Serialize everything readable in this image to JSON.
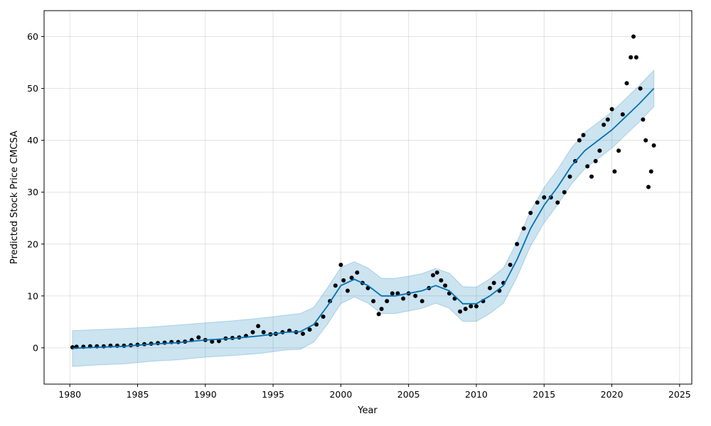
{
  "chart_data": {
    "type": "line",
    "title": "",
    "xlabel": "Year",
    "ylabel": "Predicted Stock Price CMCSA",
    "xlim": [
      1978.1,
      2025.9
    ],
    "ylim": [
      -7,
      65
    ],
    "x_ticks": [
      1980,
      1985,
      1990,
      1995,
      2000,
      2005,
      2010,
      2015,
      2020,
      2025
    ],
    "x_tick_labels": [
      "1980",
      "1985",
      "1990",
      "1995",
      "2000",
      "2005",
      "2010",
      "2015",
      "2020",
      "2025"
    ],
    "y_ticks": [
      0,
      10,
      20,
      30,
      40,
      50,
      60
    ],
    "y_tick_labels": [
      "0",
      "10",
      "20",
      "30",
      "40",
      "50",
      "60"
    ],
    "grid": true,
    "legend": "none",
    "colors": {
      "forecast": "#0072B2",
      "interval": "#0072B2",
      "actual": "#000000"
    },
    "series": [
      {
        "kind": "actual",
        "style": "points",
        "x": [
          1980.2,
          1980.5,
          1981,
          1981.5,
          1982,
          1982.5,
          1983,
          1983.5,
          1984,
          1984.5,
          1985,
          1985.5,
          1986,
          1986.5,
          1987,
          1987.5,
          1988,
          1988.5,
          1989,
          1989.5,
          1990,
          1990.5,
          1991,
          1991.5,
          1992,
          1992.5,
          1993,
          1993.5,
          1993.9,
          1994.3,
          1994.8,
          1995.2,
          1995.7,
          1996.2,
          1996.7,
          1997.2,
          1997.7,
          1998.2,
          1998.7,
          1999.2,
          1999.6,
          2000,
          2000.2,
          2000.5,
          2000.8,
          2001.2,
          2001.6,
          2002,
          2002.4,
          2002.8,
          2003,
          2003.4,
          2003.8,
          2004.2,
          2004.6,
          2005,
          2005.5,
          2006,
          2006.5,
          2006.8,
          2007.1,
          2007.4,
          2007.7,
          2008,
          2008.4,
          2008.8,
          2009.2,
          2009.6,
          2010,
          2010.5,
          2011,
          2011.3,
          2011.7,
          2012,
          2012.5,
          2013,
          2013.5,
          2014,
          2014.5,
          2015,
          2015.5,
          2016,
          2016.5,
          2016.9,
          2017.3,
          2017.6,
          2017.9,
          2018.2,
          2018.5,
          2018.8,
          2019.1,
          2019.4,
          2019.7,
          2020,
          2020.2,
          2020.5,
          2020.8,
          2021.1,
          2021.4,
          2021.6,
          2021.8,
          2022.1,
          2022.3,
          2022.5,
          2022.7,
          2022.9,
          2023.1
        ],
        "y": [
          0.1,
          0.2,
          0.2,
          0.3,
          0.3,
          0.3,
          0.4,
          0.4,
          0.4,
          0.5,
          0.6,
          0.7,
          0.8,
          0.9,
          1.0,
          1.1,
          1.1,
          1.2,
          1.5,
          2.0,
          1.5,
          1.2,
          1.3,
          1.8,
          1.9,
          2.0,
          2.3,
          3.0,
          4.2,
          3.0,
          2.6,
          2.7,
          3.0,
          3.3,
          3.0,
          2.7,
          3.5,
          4.5,
          6.0,
          9.0,
          12.0,
          16.0,
          13.0,
          11.0,
          13.5,
          14.5,
          12.5,
          11.5,
          9.0,
          6.5,
          7.5,
          9.0,
          10.5,
          10.5,
          9.5,
          10.5,
          10.0,
          9.0,
          11.5,
          14.0,
          14.5,
          13.0,
          12.0,
          10.5,
          9.5,
          7.0,
          7.5,
          8.0,
          8.0,
          9.0,
          11.5,
          12.5,
          11.0,
          12.5,
          16.0,
          20.0,
          23.0,
          26.0,
          28.0,
          29.0,
          29.0,
          28.0,
          30.0,
          33.0,
          36.0,
          40.0,
          41.0,
          35.0,
          33.0,
          36.0,
          38.0,
          43.0,
          44.0,
          46.0,
          34.0,
          38.0,
          45.0,
          51.0,
          56.0,
          60.0,
          56.0,
          50.0,
          44.0,
          40.0,
          31.0,
          34.0,
          39.0
        ]
      },
      {
        "kind": "forecast",
        "style": "line",
        "x": [
          1980.2,
          1982,
          1984,
          1986,
          1988,
          1990,
          1992,
          1994,
          1996,
          1997,
          1998,
          1999,
          2000,
          2001,
          2002,
          2003,
          2004,
          2005,
          2006,
          2007,
          2008,
          2009,
          2010,
          2011,
          2012,
          2013,
          2014,
          2015,
          2016,
          2017,
          2018,
          2019,
          2020,
          2021,
          2022,
          2023.1
        ],
        "y": [
          -0.1,
          0.1,
          0.3,
          0.7,
          1.0,
          1.5,
          1.8,
          2.3,
          3.0,
          3.1,
          4.5,
          8.0,
          12.0,
          13.2,
          12.0,
          10.0,
          10.0,
          10.5,
          11.0,
          12.0,
          11.0,
          8.5,
          8.5,
          10.0,
          12.0,
          17.0,
          23.0,
          27.5,
          31.0,
          35.0,
          38.0,
          40.0,
          42.0,
          44.5,
          47.0,
          50.0
        ]
      },
      {
        "kind": "interval_upper",
        "style": "band",
        "x": [
          1980.2,
          1982,
          1984,
          1986,
          1988,
          1990,
          1992,
          1994,
          1996,
          1997,
          1998,
          1999,
          2000,
          2001,
          2002,
          2003,
          2004,
          2005,
          2006,
          2007,
          2008,
          2009,
          2010,
          2011,
          2012,
          2013,
          2014,
          2015,
          2016,
          2017,
          2018,
          2019,
          2020,
          2021,
          2022,
          2023.1
        ],
        "y": [
          3.3,
          3.5,
          3.7,
          4.0,
          4.4,
          4.8,
          5.2,
          5.7,
          6.3,
          6.6,
          7.8,
          11.5,
          15.5,
          16.6,
          15.4,
          13.4,
          13.4,
          13.8,
          14.3,
          15.3,
          14.4,
          11.8,
          11.7,
          13.3,
          15.4,
          20.4,
          26.4,
          30.9,
          34.4,
          38.5,
          41.5,
          43.5,
          45.5,
          48.0,
          50.5,
          53.5
        ]
      },
      {
        "kind": "interval_lower",
        "style": "band",
        "x": [
          1980.2,
          1982,
          1984,
          1986,
          1988,
          1990,
          1992,
          1994,
          1996,
          1997,
          1998,
          1999,
          2000,
          2001,
          2002,
          2003,
          2004,
          2005,
          2006,
          2007,
          2008,
          2009,
          2010,
          2011,
          2012,
          2013,
          2014,
          2015,
          2016,
          2017,
          2018,
          2019,
          2020,
          2021,
          2022,
          2023.1
        ],
        "y": [
          -3.6,
          -3.3,
          -3.1,
          -2.6,
          -2.3,
          -1.8,
          -1.5,
          -1.1,
          -0.4,
          -0.3,
          1.1,
          4.5,
          8.5,
          9.8,
          8.6,
          6.6,
          6.6,
          7.1,
          7.6,
          8.6,
          7.6,
          5.1,
          5.1,
          6.6,
          8.6,
          13.6,
          19.6,
          24.1,
          27.6,
          31.5,
          34.5,
          36.5,
          38.5,
          41.0,
          43.5,
          46.5
        ]
      }
    ]
  }
}
